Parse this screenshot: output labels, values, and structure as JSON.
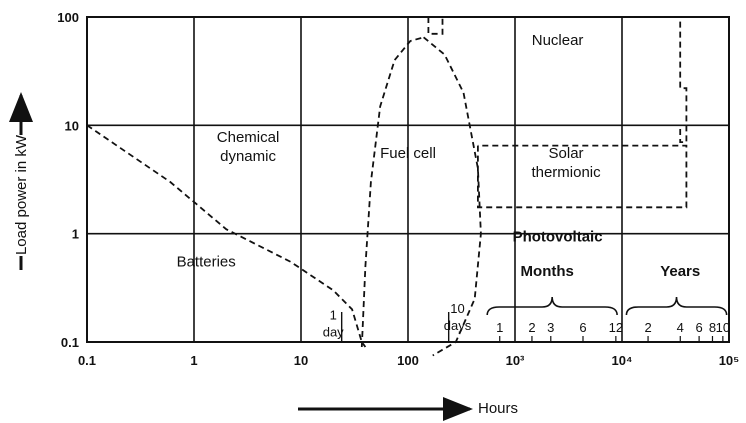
{
  "chart_data": {
    "type": "area",
    "xlabel": "Hours",
    "ylabel": "Load power in kW",
    "xscale": "log",
    "yscale": "log",
    "xlim": [
      0.1,
      100000
    ],
    "ylim": [
      0.1,
      100
    ],
    "grid": true,
    "x_ticks": [
      {
        "value": 0.1,
        "label": "0.1"
      },
      {
        "value": 1,
        "label": "1"
      },
      {
        "value": 10,
        "label": "10"
      },
      {
        "value": 100,
        "label": "100"
      },
      {
        "value": 1000,
        "label": "10³"
      },
      {
        "value": 10000,
        "label": "10⁴"
      },
      {
        "value": 100000,
        "label": "10⁵"
      }
    ],
    "y_ticks": [
      {
        "value": 0.1,
        "label": "0.1"
      },
      {
        "value": 1,
        "label": "1"
      },
      {
        "value": 10,
        "label": "10"
      },
      {
        "value": 100,
        "label": "100"
      }
    ],
    "regions": [
      {
        "name": "Batteries",
        "lines": [
          "Batteries"
        ],
        "label_at": [
          1.3,
          0.5
        ]
      },
      {
        "name": "Chemical dynamic",
        "lines": [
          "Chemical",
          "dynamic"
        ],
        "label_at": [
          3.2,
          7
        ]
      },
      {
        "name": "Fuel cell",
        "lines": [
          "Fuel cell"
        ],
        "label_at": [
          100,
          5
        ]
      },
      {
        "name": "Nuclear",
        "lines": [
          "Nuclear"
        ],
        "label_at": [
          2500,
          55
        ]
      },
      {
        "name": "Solar thermionic",
        "lines": [
          "Solar",
          "thermionic"
        ],
        "label_at": [
          3000,
          5
        ]
      },
      {
        "name": "Photovoltaic",
        "lines": [
          "Photovoltaic"
        ],
        "label_at": [
          2500,
          0.85
        ]
      }
    ],
    "boundaries": [
      {
        "name": "chemical-dynamic-batteries",
        "x": [
          0.1,
          0.6,
          2,
          8,
          20,
          30,
          37,
          40
        ],
        "y": [
          10,
          3,
          1.1,
          0.55,
          0.3,
          0.2,
          0.1,
          0.09
        ]
      },
      {
        "name": "fuel-cell-left",
        "x": [
          37,
          40,
          45,
          55,
          75,
          105,
          140
        ],
        "y": [
          0.09,
          0.5,
          3,
          15,
          40,
          60,
          65
        ]
      },
      {
        "name": "fuel-cell-right",
        "x": [
          140,
          220,
          330,
          450,
          480,
          420,
          280,
          170
        ],
        "y": [
          65,
          45,
          20,
          4,
          1,
          0.25,
          0.1,
          0.075
        ]
      },
      {
        "name": "nuclear-boundary",
        "x": [
          155,
          155,
          210,
          210,
          35000,
          35000,
          40000,
          40000,
          35000,
          35000
        ],
        "y": [
          100,
          70,
          70,
          100,
          100,
          22,
          22,
          7,
          7,
          10
        ]
      },
      {
        "name": "solar-thermionic-box",
        "x": [
          450,
          450,
          40000,
          40000,
          450
        ],
        "y": [
          6.5,
          1.75,
          1.75,
          6.5,
          6.5
        ]
      }
    ],
    "annotations": [
      {
        "lines": [
          "1",
          "day"
        ],
        "at": [
          20,
          0.13
        ],
        "marker_x": 24
      },
      {
        "lines": [
          "10",
          "days"
        ],
        "at": [
          290,
          0.15
        ],
        "marker_x": 240
      }
    ],
    "months": {
      "label": "Months",
      "label_at": [
        2000,
        0.45
      ],
      "brace_from": 550,
      "brace_to": 9000,
      "ticks": [
        {
          "value": 720,
          "label": "1"
        },
        {
          "value": 1440,
          "label": "2"
        },
        {
          "value": 2160,
          "label": "3"
        },
        {
          "value": 4320,
          "label": "6"
        },
        {
          "value": 8760,
          "label": "12"
        }
      ]
    },
    "years": {
      "label": "Years",
      "label_at": [
        35000,
        0.45
      ],
      "brace_from": 11000,
      "brace_to": 95000,
      "ticks": [
        {
          "value": 17520,
          "label": "2"
        },
        {
          "value": 35040,
          "label": "4"
        },
        {
          "value": 52560,
          "label": "6"
        },
        {
          "value": 70080,
          "label": "8"
        },
        {
          "value": 87600,
          "label": "10"
        }
      ]
    }
  }
}
